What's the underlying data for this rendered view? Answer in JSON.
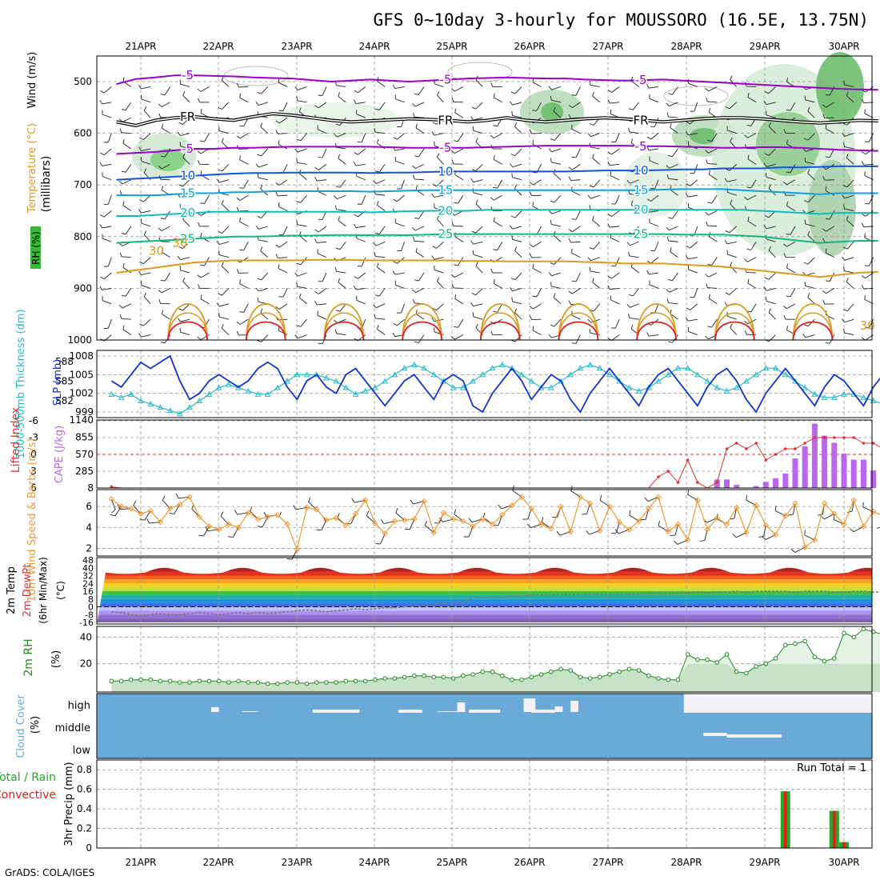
{
  "title": "GFS 0~10day 3-hourly for MOUSSORO (16.5E, 13.75N)",
  "credit": "GrADS: COLA/IGES",
  "chart_data": {
    "type": "meteogram",
    "dates": [
      "21APR",
      "22APR",
      "23APR",
      "24APR",
      "25APR",
      "26APR",
      "27APR",
      "28APR",
      "29APR",
      "30APR"
    ],
    "colors": {
      "purple": "#9900cc",
      "black": "#000000",
      "blue": "#1155dd",
      "sky": "#11a0dd",
      "teal": "#11bbbb",
      "green": "#11b880",
      "orange": "#dd9922",
      "red": "#dd2222",
      "slp": "#1133cc",
      "thick": "#22bbcc",
      "cape": "#bb66ee",
      "li": "#dd3333",
      "wind": "#ee9933",
      "rh": "#228822",
      "cloud": "#6aaad8",
      "precip_total": "#22aa22",
      "precip_conv": "#dd2222"
    },
    "upper": {
      "ylabel": "(millibars)",
      "ytitle_wind": "Wind (m/s)",
      "ytitle_temp": "Temperature (°C)",
      "ytitle_rh": "RH (%)",
      "yticks": [
        500,
        600,
        700,
        800,
        900,
        1000
      ],
      "isotherms": [
        {
          "label": "-5",
          "color": "purple",
          "values": [
            505,
            495,
            492,
            488,
            488,
            489,
            490,
            492,
            493,
            494,
            497,
            500,
            498,
            496,
            498,
            500,
            498,
            496,
            494,
            493,
            492,
            493,
            494,
            494,
            496,
            497,
            498,
            497,
            496,
            498,
            500,
            502,
            504,
            506,
            508,
            510,
            512,
            514,
            515,
            516
          ]
        },
        {
          "label": "FR",
          "color": "black",
          "values": [
            578,
            585,
            575,
            570,
            568,
            572,
            575,
            568,
            562,
            565,
            570,
            575,
            578,
            576,
            574,
            572,
            573,
            575,
            578,
            575,
            570,
            575,
            578,
            575,
            572,
            570,
            572,
            575,
            578,
            575,
            572,
            570,
            570,
            572,
            575,
            578,
            580,
            578,
            575,
            576
          ]
        },
        {
          "label": "-5",
          "color": "purple",
          "values": [
            640,
            638,
            636,
            633,
            630,
            630,
            628,
            628,
            627,
            626,
            626,
            626,
            626,
            626,
            627,
            628,
            628,
            628,
            628,
            627,
            626,
            625,
            624,
            624,
            624,
            624,
            624,
            625,
            625,
            626,
            627,
            628,
            628,
            627,
            627,
            628,
            630,
            632,
            633,
            634
          ]
        },
        {
          "label": "10",
          "color": "blue",
          "values": [
            690,
            688,
            686,
            684,
            682,
            680,
            678,
            677,
            677,
            676,
            676,
            676,
            676,
            677,
            676,
            676,
            675,
            674,
            674,
            674,
            674,
            674,
            674,
            674,
            673,
            672,
            672,
            672,
            671,
            670,
            670,
            668,
            668,
            668,
            666,
            666,
            665,
            664,
            664,
            664
          ]
        },
        {
          "label": "15",
          "color": "sky",
          "values": [
            720,
            720,
            720,
            718,
            716,
            716,
            714,
            714,
            712,
            712,
            712,
            712,
            712,
            713,
            712,
            711,
            710,
            710,
            710,
            710,
            710,
            710,
            710,
            710,
            710,
            710,
            710,
            710,
            709,
            708,
            708,
            708,
            710,
            712,
            714,
            716,
            718,
            716,
            716,
            716
          ]
        },
        {
          "label": "20",
          "color": "teal",
          "values": [
            760,
            760,
            758,
            756,
            754,
            752,
            752,
            752,
            752,
            752,
            752,
            752,
            752,
            753,
            752,
            751,
            750,
            750,
            750,
            748,
            748,
            748,
            748,
            748,
            748,
            748,
            748,
            748,
            748,
            748,
            748,
            748,
            748,
            750,
            752,
            754,
            756,
            754,
            754,
            754
          ]
        },
        {
          "label": "25",
          "color": "green",
          "values": [
            812,
            810,
            808,
            806,
            804,
            802,
            800,
            800,
            799,
            798,
            798,
            797,
            797,
            797,
            797,
            797,
            796,
            795,
            795,
            795,
            795,
            795,
            795,
            795,
            795,
            795,
            795,
            795,
            795,
            796,
            796,
            796,
            798,
            800,
            804,
            808,
            812,
            810,
            808,
            808
          ]
        }
      ],
      "isotherm_30": {
        "label": "30",
        "color": "orange",
        "values": [
          870,
          865,
          860,
          855,
          850,
          848,
          846,
          846,
          846,
          846,
          845,
          845,
          845,
          846,
          846,
          846,
          846,
          846,
          847,
          847,
          848,
          848,
          848,
          848,
          849,
          850,
          852,
          852,
          852,
          854,
          856,
          858,
          862,
          866,
          870,
          874,
          878,
          874,
          870,
          868
        ]
      },
      "isotherm_30_label_pos": [
        [
          0.2,
          835
        ],
        [
          0.5,
          820
        ],
        [
          9.3,
          980
        ]
      ],
      "warm_loops_start": [
        0.7,
        1.7,
        2.7,
        3.7,
        4.7,
        5.7,
        6.7,
        7.7,
        8.7
      ]
    },
    "slp_thickness": {
      "ylabel_left": "1000-500mb Thickness (dm)",
      "ylabel_right": "SLP (mb)",
      "thick_ticks": [
        582,
        585,
        588
      ],
      "slp_ticks": [
        999,
        1002,
        1005,
        1008
      ],
      "slp": [
        1004,
        1003,
        1005,
        1007,
        1006,
        1007,
        1008,
        1004,
        1001,
        1002,
        1004,
        1005,
        1004,
        1003,
        1004,
        1006,
        1007,
        1006,
        1003,
        1001,
        1004,
        1005,
        1003,
        1002,
        1005,
        1006,
        1004,
        1002,
        1000,
        1002,
        1004,
        1005,
        1003,
        1001,
        1004,
        1005,
        1004,
        1000,
        999,
        1002,
        1004,
        1006,
        1004,
        1001,
        1003,
        1005,
        1004,
        1001,
        999,
        1002,
        1004,
        1006,
        1004,
        1002,
        1000,
        1003,
        1005,
        1006,
        1004,
        1002,
        1000,
        1003,
        1005,
        1006,
        1004,
        1001,
        999,
        1002,
        1004,
        1006,
        1004,
        1002,
        1000,
        1003,
        1005,
        1004,
        1002,
        1000,
        1003,
        1005
      ],
      "thickness": [
        583,
        582.5,
        583,
        582,
        581.5,
        581,
        580.5,
        580,
        581,
        582,
        583,
        584,
        584.5,
        584,
        583.5,
        583,
        583,
        584,
        585,
        586,
        586,
        586,
        585.5,
        585,
        584,
        583,
        583.5,
        584,
        585,
        586,
        587,
        587.5,
        587,
        586,
        585,
        584,
        584,
        585,
        586,
        587,
        587.5,
        587,
        586,
        585,
        584,
        584,
        585,
        586,
        587,
        587.5,
        587,
        586,
        585,
        584,
        583.5,
        584,
        585,
        586,
        587,
        587,
        586,
        585,
        584,
        583.5,
        584,
        585,
        586,
        587,
        587,
        586,
        585,
        584,
        583,
        582.5,
        582.5,
        583,
        583,
        582.5,
        582,
        581.5
      ]
    },
    "cape_li": {
      "ylabel_left": "Lifted Index",
      "ylabel_right": "CAPE (J/kg)",
      "li_ticks": [
        -6,
        -3,
        0,
        3,
        6
      ],
      "cape_ticks": [
        8,
        285,
        570,
        855,
        1140
      ],
      "li": [
        5.8,
        6,
        6,
        6,
        6,
        6,
        6,
        6,
        6,
        6,
        6,
        6,
        6,
        6,
        6,
        6,
        6,
        6,
        6,
        6,
        6,
        6,
        6,
        6,
        6,
        6,
        6,
        6,
        6,
        6,
        6,
        6,
        6,
        6,
        6,
        6,
        6,
        6,
        6,
        6,
        6,
        6,
        6,
        6,
        6,
        6,
        6,
        6,
        6,
        6,
        6,
        6,
        6,
        6,
        6,
        6,
        4,
        3,
        5,
        1,
        5,
        6,
        5,
        -1,
        -2,
        -1,
        -2,
        1,
        0,
        -1,
        -1,
        -2,
        -3,
        -3,
        -3,
        -3,
        -3,
        -2,
        -2,
        -1
      ],
      "cape": [
        0,
        0,
        0,
        0,
        0,
        0,
        0,
        0,
        0,
        0,
        0,
        0,
        0,
        0,
        0,
        0,
        0,
        0,
        0,
        0,
        0,
        0,
        0,
        0,
        0,
        0,
        0,
        0,
        0,
        0,
        0,
        0,
        0,
        0,
        0,
        0,
        0,
        0,
        0,
        0,
        0,
        0,
        0,
        0,
        0,
        0,
        0,
        0,
        0,
        0,
        0,
        0,
        0,
        0,
        0,
        0,
        0,
        0,
        0,
        0,
        0,
        0,
        150,
        150,
        60,
        0,
        40,
        110,
        170,
        250,
        500,
        700,
        1080,
        880,
        760,
        580,
        480,
        480,
        300,
        150
      ]
    },
    "wind10m": {
      "ylabel": "10m Wind Speed & Barbs (m/s)",
      "yticks": [
        2,
        4,
        6
      ],
      "speed": [
        6.7,
        6,
        5.8,
        5.3,
        5.6,
        4.5,
        5.8,
        6.2,
        6.9,
        5,
        4.1,
        3.8,
        4.3,
        4,
        5.4,
        4.8,
        5,
        5.2,
        4.3,
        1.9,
        5.9,
        5.7,
        4.7,
        4.9,
        4.2,
        5.3,
        6.6,
        4.4,
        3.4,
        4.6,
        4.7,
        4.8,
        6.5,
        3.5,
        5.4,
        4.8,
        4.6,
        4.1,
        4.8,
        4.3,
        5.2,
        6.1,
        6.9,
        5.8,
        4.3,
        3.9,
        6,
        3.6,
        6.9,
        6.3,
        3.7,
        6,
        4.5,
        3.8,
        4.6,
        5.8,
        6.9,
        3.6,
        4.3,
        2.8,
        6.6,
        3.8,
        4.9,
        4.3,
        5.9,
        3.5,
        6.1,
        4.2,
        3.3,
        5.1,
        6.3,
        2.1,
        2.8,
        6.3,
        5.3,
        4.3,
        6.6,
        4.1,
        5.5,
        5.1
      ]
    },
    "temp2m": {
      "ylabel": "2m Temp 2m DewPt (6hr Min/Max) (°C)",
      "yticks": [
        -16,
        -8,
        0,
        8,
        16,
        24,
        32,
        40,
        48
      ],
      "max": [
        38,
        40,
        39,
        40,
        40,
        40,
        40,
        40,
        39,
        38
      ],
      "min": [
        30,
        31,
        31,
        31,
        31,
        31,
        31,
        31,
        30,
        30
      ],
      "dewpt": [
        -5,
        -6,
        -8,
        -9,
        -8,
        -7,
        -8,
        -8,
        -7,
        -6,
        -7,
        -8,
        -7,
        -6,
        -7,
        -6,
        -7,
        -6,
        -5,
        -4,
        -3,
        -4,
        -5,
        -4,
        -3,
        -2,
        -3,
        -2,
        -1,
        -1,
        0,
        1,
        1,
        2,
        3,
        4,
        5,
        9,
        10,
        9,
        10,
        11,
        11,
        12,
        12,
        12,
        13,
        12,
        13,
        13,
        13,
        12,
        13,
        13,
        13,
        14,
        14,
        13,
        14,
        14,
        15,
        14,
        15,
        15,
        16,
        15,
        16,
        16,
        16,
        16,
        15,
        16,
        16,
        16,
        15,
        15,
        16,
        16,
        15,
        15
      ]
    },
    "rh2m": {
      "ylabel": "2m RH (%)",
      "yticks": [
        20,
        40
      ],
      "values": [
        7,
        7,
        8,
        8,
        8,
        7,
        7,
        6,
        6,
        7,
        7,
        7,
        6,
        7,
        6,
        6,
        5,
        5,
        6,
        6,
        5,
        6,
        6,
        6,
        7,
        7,
        7,
        8,
        9,
        9,
        10,
        11,
        11,
        10,
        10,
        9,
        11,
        12,
        14,
        14,
        11,
        8,
        8,
        10,
        12,
        14,
        16,
        15,
        10,
        9,
        10,
        12,
        14,
        16,
        15,
        11,
        9,
        8,
        8,
        27,
        23,
        23,
        21,
        27,
        14,
        13,
        18,
        20,
        24,
        34,
        35,
        37,
        25,
        22,
        24,
        43,
        40,
        46,
        44,
        42
      ]
    },
    "cloud": {
      "ylabel": "Cloud Cover (%)",
      "levels": [
        "high",
        "middle",
        "low"
      ]
    },
    "precip": {
      "ylabel_top": "Total / Rain",
      "ylabel_mid": "Convective",
      "ylabel": "3hr Precip (mm)",
      "yticks": [
        0,
        0.2,
        0.4,
        0.6,
        0.8
      ],
      "run_total": "Run Total = 1",
      "bars": [
        {
          "i": 69,
          "total": 0.58,
          "conv": 0.58
        },
        {
          "i": 74,
          "total": 0.38,
          "conv": 0.38
        },
        {
          "i": 75,
          "total": 0.06,
          "conv": 0.06
        }
      ]
    }
  }
}
